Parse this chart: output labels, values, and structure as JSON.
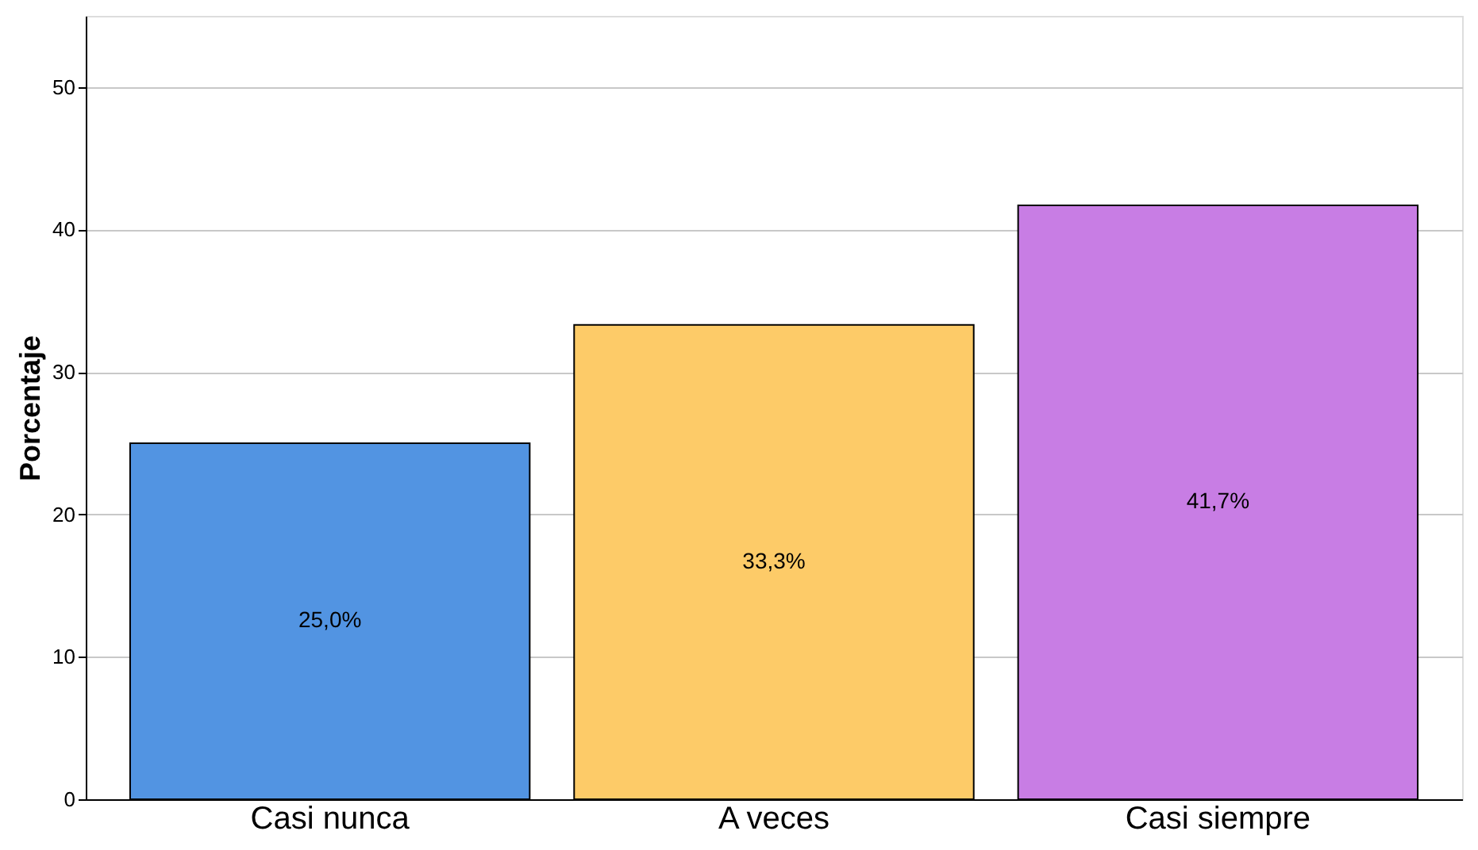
{
  "chart_data": {
    "type": "bar",
    "ylabel": "Porcentaje",
    "categories": [
      "Casi nunca",
      "A veces",
      "Casi siempre"
    ],
    "values": [
      25.0,
      33.3,
      41.7
    ],
    "colors": [
      "#5294e2",
      "#fdcb68",
      "#c87de4"
    ],
    "value_labels": [
      "25,0%",
      "33,3%",
      "41,7%"
    ],
    "ylim": [
      0,
      55
    ],
    "yticks": [
      0,
      10,
      20,
      30,
      40,
      50
    ],
    "grid": "y",
    "legend": false
  }
}
